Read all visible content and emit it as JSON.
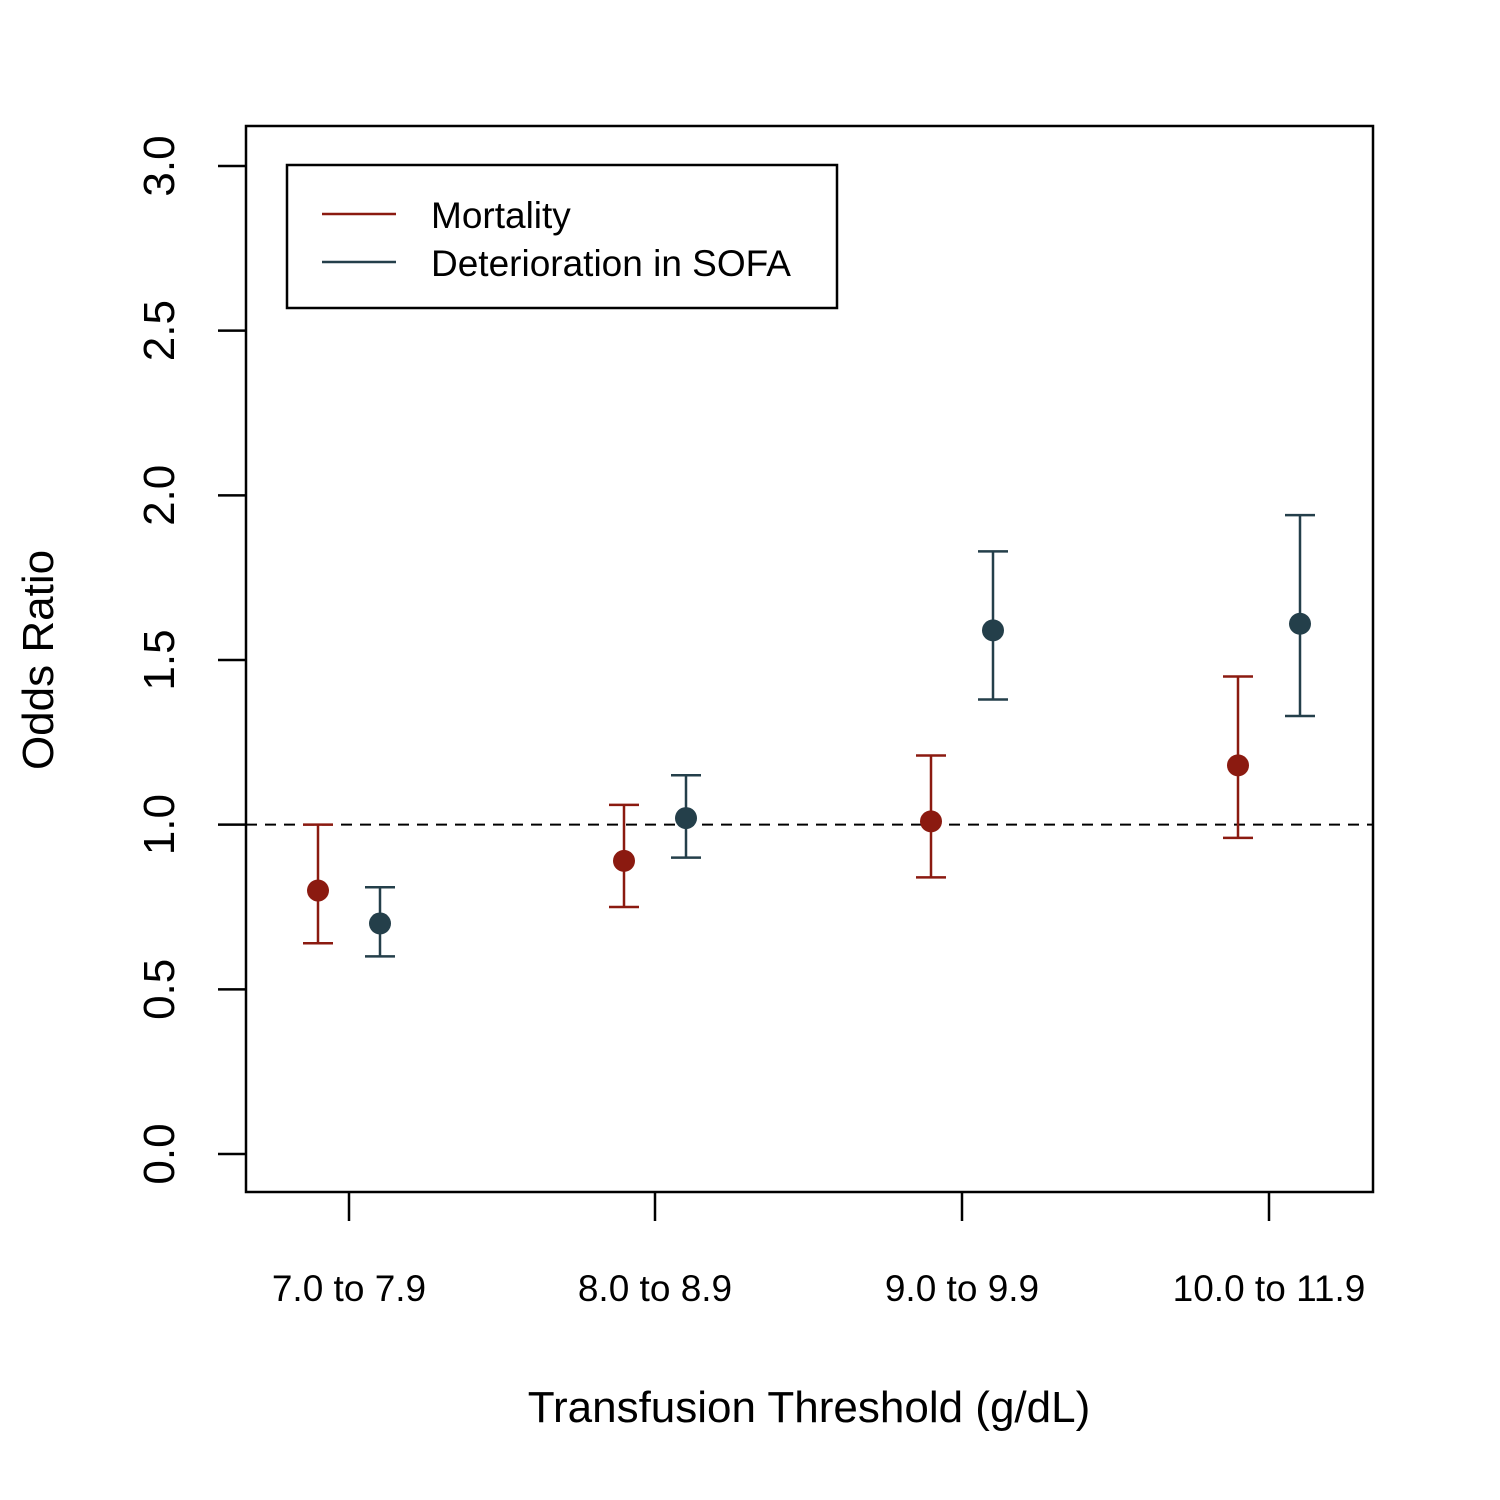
{
  "chart_data": {
    "type": "scatter",
    "title": "",
    "xlabel": "Transfusion Threshold (g/dL)",
    "ylabel": "Odds Ratio",
    "categories": [
      "7.0 to 7.9",
      "8.0 to 8.9",
      "9.0 to 9.9",
      "10.0 to 11.9"
    ],
    "ylim": [
      0.0,
      3.0
    ],
    "yticks": [
      "0.0",
      "0.5",
      "1.0",
      "1.5",
      "2.0",
      "2.5",
      "3.0"
    ],
    "reference_line": 1.0,
    "grid": false,
    "legend_position": "top-left",
    "series": [
      {
        "name": "Mortality",
        "color": "#8b1a10",
        "values": [
          0.8,
          0.89,
          1.01,
          1.18
        ],
        "lower": [
          0.64,
          0.75,
          0.84,
          0.96
        ],
        "upper": [
          1.0,
          1.06,
          1.21,
          1.45
        ]
      },
      {
        "name": "Deterioration in SOFA",
        "color": "#243f4a",
        "values": [
          0.7,
          1.02,
          1.59,
          1.61
        ],
        "lower": [
          0.6,
          0.9,
          1.38,
          1.33
        ],
        "upper": [
          0.81,
          1.15,
          1.83,
          1.94
        ]
      }
    ]
  }
}
